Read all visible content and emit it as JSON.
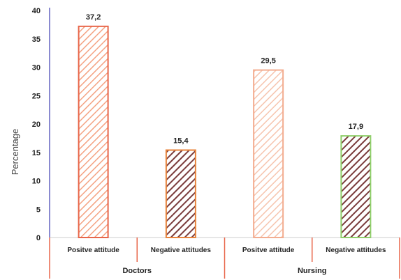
{
  "chart_data": {
    "type": "bar",
    "ylabel": "Percentage",
    "ylim": [
      0,
      40
    ],
    "yticks": [
      0,
      5,
      10,
      15,
      20,
      25,
      30,
      35,
      40
    ],
    "grid": false,
    "groups": [
      {
        "label": "Doctors",
        "categories": [
          "Positve attitude",
          "Negative attitudes"
        ]
      },
      {
        "label": "Nursing",
        "categories": [
          "Positve attitude",
          "Negative attitudes"
        ]
      }
    ],
    "bars": [
      {
        "category": "Positve attitude",
        "group": "Doctors",
        "value": 37.2,
        "label": "37,2",
        "fill": "#f4a282",
        "stroke": "#e8664a",
        "pattern": "light"
      },
      {
        "category": "Negative attitudes",
        "group": "Doctors",
        "value": 15.4,
        "label": "15,4",
        "fill": "#7a3b3b",
        "stroke": "#e8843c",
        "pattern": "dark"
      },
      {
        "category": "Positve attitude",
        "group": "Nursing",
        "value": 29.5,
        "label": "29,5",
        "fill": "#f6b9a0",
        "stroke": "#f3ad90",
        "pattern": "light"
      },
      {
        "category": "Negative attitudes",
        "group": "Nursing",
        "value": 17.9,
        "label": "17,9",
        "fill": "#7a3b3b",
        "stroke": "#8fcf6a",
        "pattern": "dark"
      }
    ],
    "colors": {
      "axis": "#8a8ad0",
      "separator": "#e8664a"
    }
  }
}
